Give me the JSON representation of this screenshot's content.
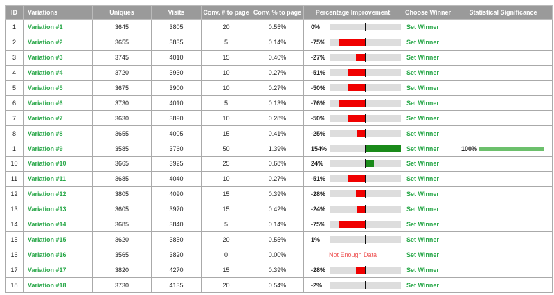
{
  "header": {
    "columns": [
      "ID",
      "Variations",
      "Uniques",
      "Visits",
      "Conv. # to page",
      "Conv. % to page",
      "Percentage Improvement",
      "Choose Winner",
      "Statistical Significance"
    ]
  },
  "rows": [
    {
      "id": "1",
      "name": "Variation #1",
      "uniques": "3645",
      "visits": "3805",
      "conv_count": "20",
      "conv_pct": "0.55%",
      "improvement": 0,
      "improvement_label": "0%",
      "action": "Set Winner"
    },
    {
      "id": "2",
      "name": "Variation #2",
      "uniques": "3655",
      "visits": "3835",
      "conv_count": "5",
      "conv_pct": "0.14%",
      "improvement": -75,
      "improvement_label": "-75%",
      "action": "Set Winner"
    },
    {
      "id": "3",
      "name": "Variation #3",
      "uniques": "3745",
      "visits": "4010",
      "conv_count": "15",
      "conv_pct": "0.40%",
      "improvement": -27,
      "improvement_label": "-27%",
      "action": "Set Winner"
    },
    {
      "id": "4",
      "name": "Variation #4",
      "uniques": "3720",
      "visits": "3930",
      "conv_count": "10",
      "conv_pct": "0.27%",
      "improvement": -51,
      "improvement_label": "-51%",
      "action": "Set Winner"
    },
    {
      "id": "5",
      "name": "Variation #5",
      "uniques": "3675",
      "visits": "3900",
      "conv_count": "10",
      "conv_pct": "0.27%",
      "improvement": -50,
      "improvement_label": "-50%",
      "action": "Set Winner"
    },
    {
      "id": "6",
      "name": "Variation #6",
      "uniques": "3730",
      "visits": "4010",
      "conv_count": "5",
      "conv_pct": "0.13%",
      "improvement": -76,
      "improvement_label": "-76%",
      "action": "Set Winner"
    },
    {
      "id": "7",
      "name": "Variation #7",
      "uniques": "3630",
      "visits": "3890",
      "conv_count": "10",
      "conv_pct": "0.28%",
      "improvement": -50,
      "improvement_label": "-50%",
      "action": "Set Winner"
    },
    {
      "id": "8",
      "name": "Variation #8",
      "uniques": "3655",
      "visits": "4005",
      "conv_count": "15",
      "conv_pct": "0.41%",
      "improvement": -25,
      "improvement_label": "-25%",
      "action": "Set Winner"
    },
    {
      "id": "1",
      "name": "Variation #9",
      "uniques": "3585",
      "visits": "3760",
      "conv_count": "50",
      "conv_pct": "1.39%",
      "improvement": 154,
      "improvement_label": "154%",
      "action": "Set Winner",
      "significance": 100,
      "significance_label": "100%"
    },
    {
      "id": "10",
      "name": "Variation #10",
      "uniques": "3665",
      "visits": "3925",
      "conv_count": "25",
      "conv_pct": "0.68%",
      "improvement": 24,
      "improvement_label": "24%",
      "action": "Set Winner"
    },
    {
      "id": "11",
      "name": "Variation #11",
      "uniques": "3685",
      "visits": "4040",
      "conv_count": "10",
      "conv_pct": "0.27%",
      "improvement": -51,
      "improvement_label": "-51%",
      "action": "Set Winner"
    },
    {
      "id": "12",
      "name": "Variation #12",
      "uniques": "3805",
      "visits": "4090",
      "conv_count": "15",
      "conv_pct": "0.39%",
      "improvement": -28,
      "improvement_label": "-28%",
      "action": "Set Winner"
    },
    {
      "id": "13",
      "name": "Variation #13",
      "uniques": "3605",
      "visits": "3970",
      "conv_count": "15",
      "conv_pct": "0.42%",
      "improvement": -24,
      "improvement_label": "-24%",
      "action": "Set Winner"
    },
    {
      "id": "14",
      "name": "Variation #14",
      "uniques": "3685",
      "visits": "3840",
      "conv_count": "5",
      "conv_pct": "0.14%",
      "improvement": -75,
      "improvement_label": "-75%",
      "action": "Set Winner"
    },
    {
      "id": "15",
      "name": "Variation #15",
      "uniques": "3620",
      "visits": "3850",
      "conv_count": "20",
      "conv_pct": "0.55%",
      "improvement": 1,
      "improvement_label": "1%",
      "action": "Set Winner"
    },
    {
      "id": "16",
      "name": "Variation #16",
      "uniques": "3565",
      "visits": "3820",
      "conv_count": "0",
      "conv_pct": "0.00%",
      "improvement_label": "Not Enough Data",
      "action": "Set Winner"
    },
    {
      "id": "17",
      "name": "Variation #17",
      "uniques": "3820",
      "visits": "4270",
      "conv_count": "15",
      "conv_pct": "0.39%",
      "improvement": -28,
      "improvement_label": "-28%",
      "action": "Set Winner"
    },
    {
      "id": "18",
      "name": "Variation #18",
      "uniques": "3730",
      "visits": "4135",
      "conv_count": "20",
      "conv_pct": "0.54%",
      "improvement": -2,
      "improvement_label": "-2%",
      "action": "Set Winner"
    }
  ]
}
